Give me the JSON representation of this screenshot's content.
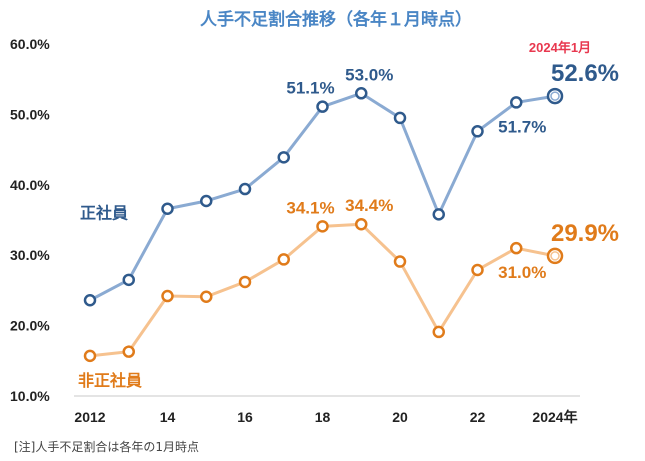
{
  "chart_data": {
    "type": "line",
    "title": "人手不足割合推移（各年１月時点）",
    "note": "[注]人手不足割合は各年の1月時点",
    "x": [
      2012,
      2013,
      2014,
      2015,
      2016,
      2017,
      2018,
      2019,
      2020,
      2021,
      2022,
      2023,
      2024
    ],
    "xticks": [
      "2012",
      "14",
      "16",
      "18",
      "20",
      "22",
      "2024年"
    ],
    "xtick_years": [
      2012,
      2014,
      2016,
      2018,
      2020,
      2022,
      2024
    ],
    "yticks": [
      "10.0%",
      "20.0%",
      "30.0%",
      "40.0%",
      "50.0%",
      "60.0%"
    ],
    "ylim": [
      10,
      60
    ],
    "grid": false,
    "highlight_label": "2024年1月",
    "series": [
      {
        "name": "正社員",
        "color": "#2f5a8c",
        "line_color": "#8aaad2",
        "values": [
          23.6,
          26.5,
          36.6,
          37.7,
          39.4,
          43.9,
          51.1,
          53.0,
          49.5,
          35.8,
          47.6,
          51.7,
          52.6
        ],
        "point_labels": [
          {
            "year": 2018,
            "text": "51.1%"
          },
          {
            "year": 2019,
            "text": "53.0%"
          },
          {
            "year": 2023,
            "text": "51.7%"
          }
        ],
        "last_label": "52.6%"
      },
      {
        "name": "非正社員",
        "color": "#e07b1a",
        "line_color": "#f6c28f",
        "values": [
          15.7,
          16.3,
          24.2,
          24.1,
          26.2,
          29.4,
          34.1,
          34.4,
          29.1,
          19.1,
          27.9,
          31.0,
          29.9
        ],
        "point_labels": [
          {
            "year": 2018,
            "text": "34.1%"
          },
          {
            "year": 2019,
            "text": "34.4%"
          },
          {
            "year": 2023,
            "text": "31.0%"
          }
        ],
        "last_label": "29.9%"
      }
    ]
  },
  "colors": {
    "title": "#4a86c5",
    "highlight": "#e8384f"
  }
}
